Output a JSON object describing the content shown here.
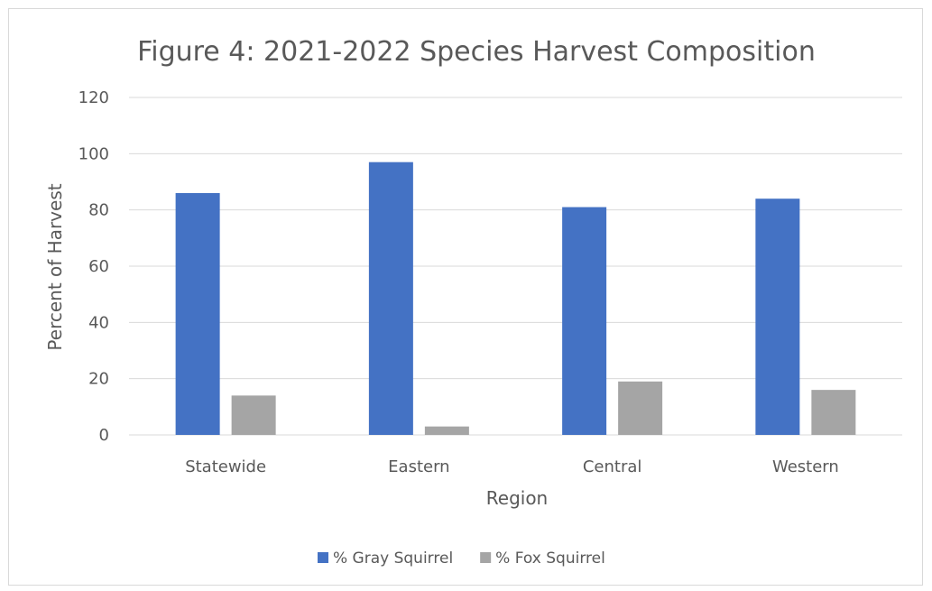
{
  "chart_data": {
    "type": "bar",
    "title": "Figure 4: 2021-2022 Species Harvest Composition",
    "xlabel": "Region",
    "ylabel": "Percent of  Harvest",
    "categories": [
      "Statewide",
      "Eastern",
      "Central",
      "Western"
    ],
    "series": [
      {
        "name": "% Gray Squirrel",
        "values": [
          86,
          97,
          81,
          84
        ],
        "color": "#4472c4"
      },
      {
        "name": "% Fox Squirrel",
        "values": [
          14,
          3,
          19,
          16
        ],
        "color": "#a5a5a5"
      }
    ],
    "ylim": [
      0,
      120
    ],
    "yticks": [
      0,
      20,
      40,
      60,
      80,
      100,
      120
    ],
    "grid": true,
    "legend": "bottom",
    "gridline_color": "#d9d9d9"
  }
}
